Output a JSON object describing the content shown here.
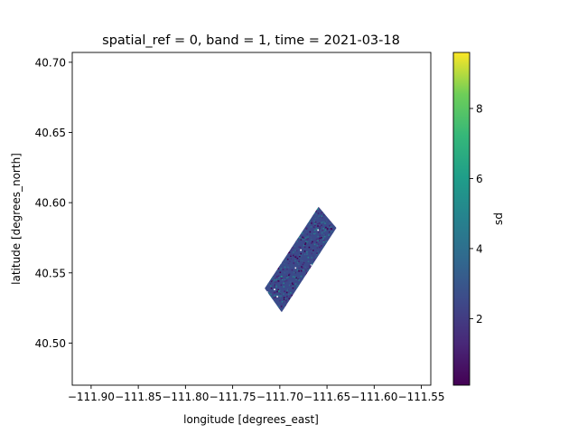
{
  "chart_data": {
    "type": "heatmap",
    "title": "spatial_ref = 0, band = 1, time = 2021-03-18",
    "xlabel": "longitude [degrees_east]",
    "ylabel": "latitude [degrees_north]",
    "colorbar_label": "sd",
    "colormap": "viridis",
    "xlim": [
      -111.92,
      -111.54
    ],
    "ylim": [
      40.47,
      40.707
    ],
    "x_ticks": [
      -111.9,
      -111.85,
      -111.8,
      -111.75,
      -111.7,
      -111.65,
      -111.6,
      -111.55
    ],
    "x_tick_labels": [
      "−111.90",
      "−111.85",
      "−111.80",
      "−111.75",
      "−111.70",
      "−111.65",
      "−111.60",
      "−111.55"
    ],
    "y_ticks": [
      40.5,
      40.55,
      40.6,
      40.65,
      40.7
    ],
    "y_tick_labels": [
      "40.50",
      "40.55",
      "40.60",
      "40.65",
      "40.70"
    ],
    "colorbar_range": [
      0.1,
      9.6
    ],
    "colorbar_ticks": [
      2,
      4,
      6,
      8
    ],
    "colorbar_tick_labels": [
      "2",
      "4",
      "6",
      "8"
    ],
    "data_footprint_corners": [
      [
        -111.716,
        40.539
      ],
      [
        -111.659,
        40.597
      ],
      [
        -111.64,
        40.582
      ],
      [
        -111.698,
        40.522
      ]
    ],
    "typical_value_range": [
      1,
      3
    ],
    "grid": false,
    "legend": "colorbar-right"
  }
}
